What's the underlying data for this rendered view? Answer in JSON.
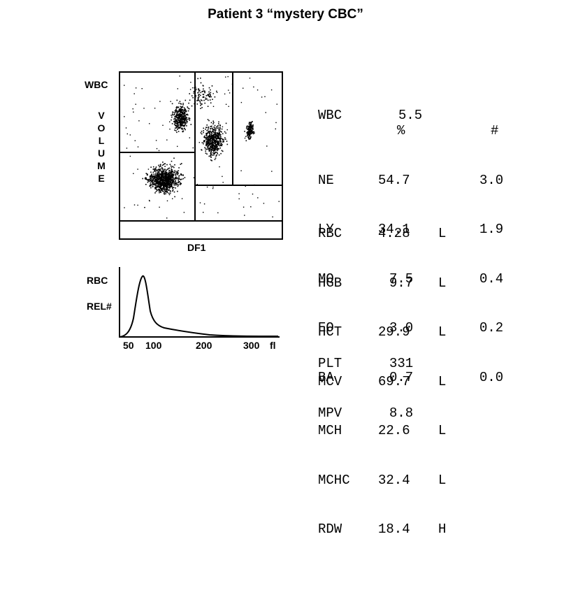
{
  "title": "Patient 3 “mystery CBC”",
  "scatter": {
    "y_label": "WBC",
    "volume_letters": [
      "V",
      "O",
      "L",
      "U",
      "M",
      "E"
    ],
    "x_label": "DF1"
  },
  "histogram": {
    "label_top": "RBC",
    "label_bottom": "REL#",
    "ticks": [
      "50",
      "100",
      "200",
      "300",
      "fl"
    ]
  },
  "wbc": {
    "label": "WBC",
    "value": "5.5"
  },
  "diff_headers": {
    "pct": "%",
    "abs": "#"
  },
  "differential": [
    {
      "label": "NE",
      "pct": "54.7",
      "abs": "3.0"
    },
    {
      "label": "LY",
      "pct": "34.1",
      "abs": "1.9"
    },
    {
      "label": "MO",
      "pct": "7.5",
      "abs": "0.4"
    },
    {
      "label": "EO",
      "pct": "3.0",
      "abs": "0.2"
    },
    {
      "label": "BA",
      "pct": "0.7",
      "abs": "0.0"
    }
  ],
  "rbc_indices": [
    {
      "label": "RBC",
      "value": "4.28",
      "flag": "L"
    },
    {
      "label": "HGB",
      "value": "9.7",
      "flag": "L"
    },
    {
      "label": "HCT",
      "value": "29.9",
      "flag": "L"
    },
    {
      "label": "MCV",
      "value": "69.7",
      "flag": "L"
    },
    {
      "label": "MCH",
      "value": "22.6",
      "flag": "L"
    },
    {
      "label": "MCHC",
      "value": "32.4",
      "flag": "L"
    },
    {
      "label": "RDW",
      "value": "18.4",
      "flag": "H"
    }
  ],
  "platelets": [
    {
      "label": "PLT",
      "value": "331"
    },
    {
      "label": "MPV",
      "value": "8.8"
    }
  ]
}
